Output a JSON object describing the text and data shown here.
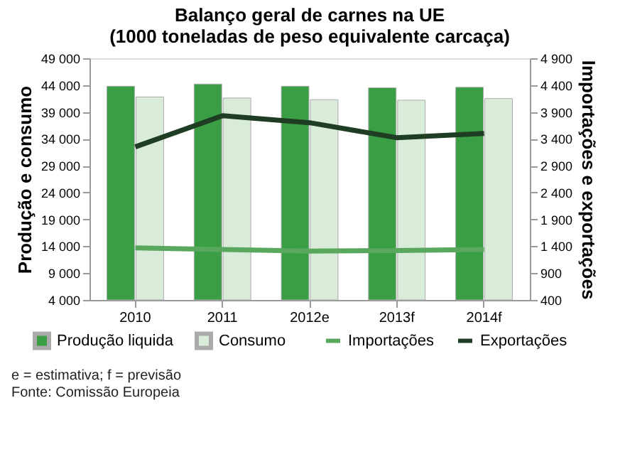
{
  "chart_data": {
    "type": "bar",
    "title": "Balanço geral de carnes na UE\n(1000 toneladas de peso equivalente carcaça)",
    "categories": [
      "2010",
      "2011",
      "2012e",
      "2013f",
      "2014f"
    ],
    "ylabel": "Produção e consumo",
    "y2label": "Importações e exportações",
    "series": [
      {
        "name": "Produção liquida",
        "color": "#3a9e45",
        "values": [
          43800,
          44200,
          43800,
          43500,
          43600
        ]
      },
      {
        "name": "Consumo",
        "color": "#d9ecd9",
        "values": [
          41800,
          41600,
          41300,
          41200,
          41500
        ]
      },
      {
        "name": "Importações",
        "type": "line",
        "axis": "y2",
        "color": "#5aa85e",
        "values": [
          1370,
          1340,
          1310,
          1320,
          1340
        ]
      },
      {
        "name": "Exportações",
        "type": "line",
        "axis": "y2",
        "color": "#1f3d22",
        "values": [
          3250,
          3830,
          3700,
          3420,
          3500
        ]
      }
    ],
    "ylim": [
      4000,
      49000
    ],
    "yticks": [
      {
        "value": 4000,
        "label": "4 000"
      },
      {
        "value": 9000,
        "label": "9 000"
      },
      {
        "value": 14000,
        "label": "14 000"
      },
      {
        "value": 19000,
        "label": "19 000"
      },
      {
        "value": 24000,
        "label": "24 000"
      },
      {
        "value": 29000,
        "label": "29 000"
      },
      {
        "value": 34000,
        "label": "34 000"
      },
      {
        "value": 39000,
        "label": "39 000"
      },
      {
        "value": 44000,
        "label": "44 000"
      },
      {
        "value": 49000,
        "label": "49 000"
      }
    ],
    "y2lim": [
      400,
      4900
    ],
    "y2ticks": [
      400,
      900,
      {
        "value": 1400,
        "label": "1 400"
      },
      {
        "value": 1900,
        "label": "1 900"
      },
      {
        "value": 2400,
        "label": "2 400"
      },
      {
        "value": 2900,
        "label": "2 900"
      },
      {
        "value": 3400,
        "label": "3 400"
      },
      {
        "value": 3900,
        "label": "3 900"
      },
      {
        "value": 4400,
        "label": "4 400"
      },
      {
        "value": 4900,
        "label": "4 900"
      }
    ],
    "legend": "bottom",
    "grid": false,
    "annotations": [
      "e = estimativa; f = previsão",
      "Fonte: Comissão Europeia"
    ]
  }
}
